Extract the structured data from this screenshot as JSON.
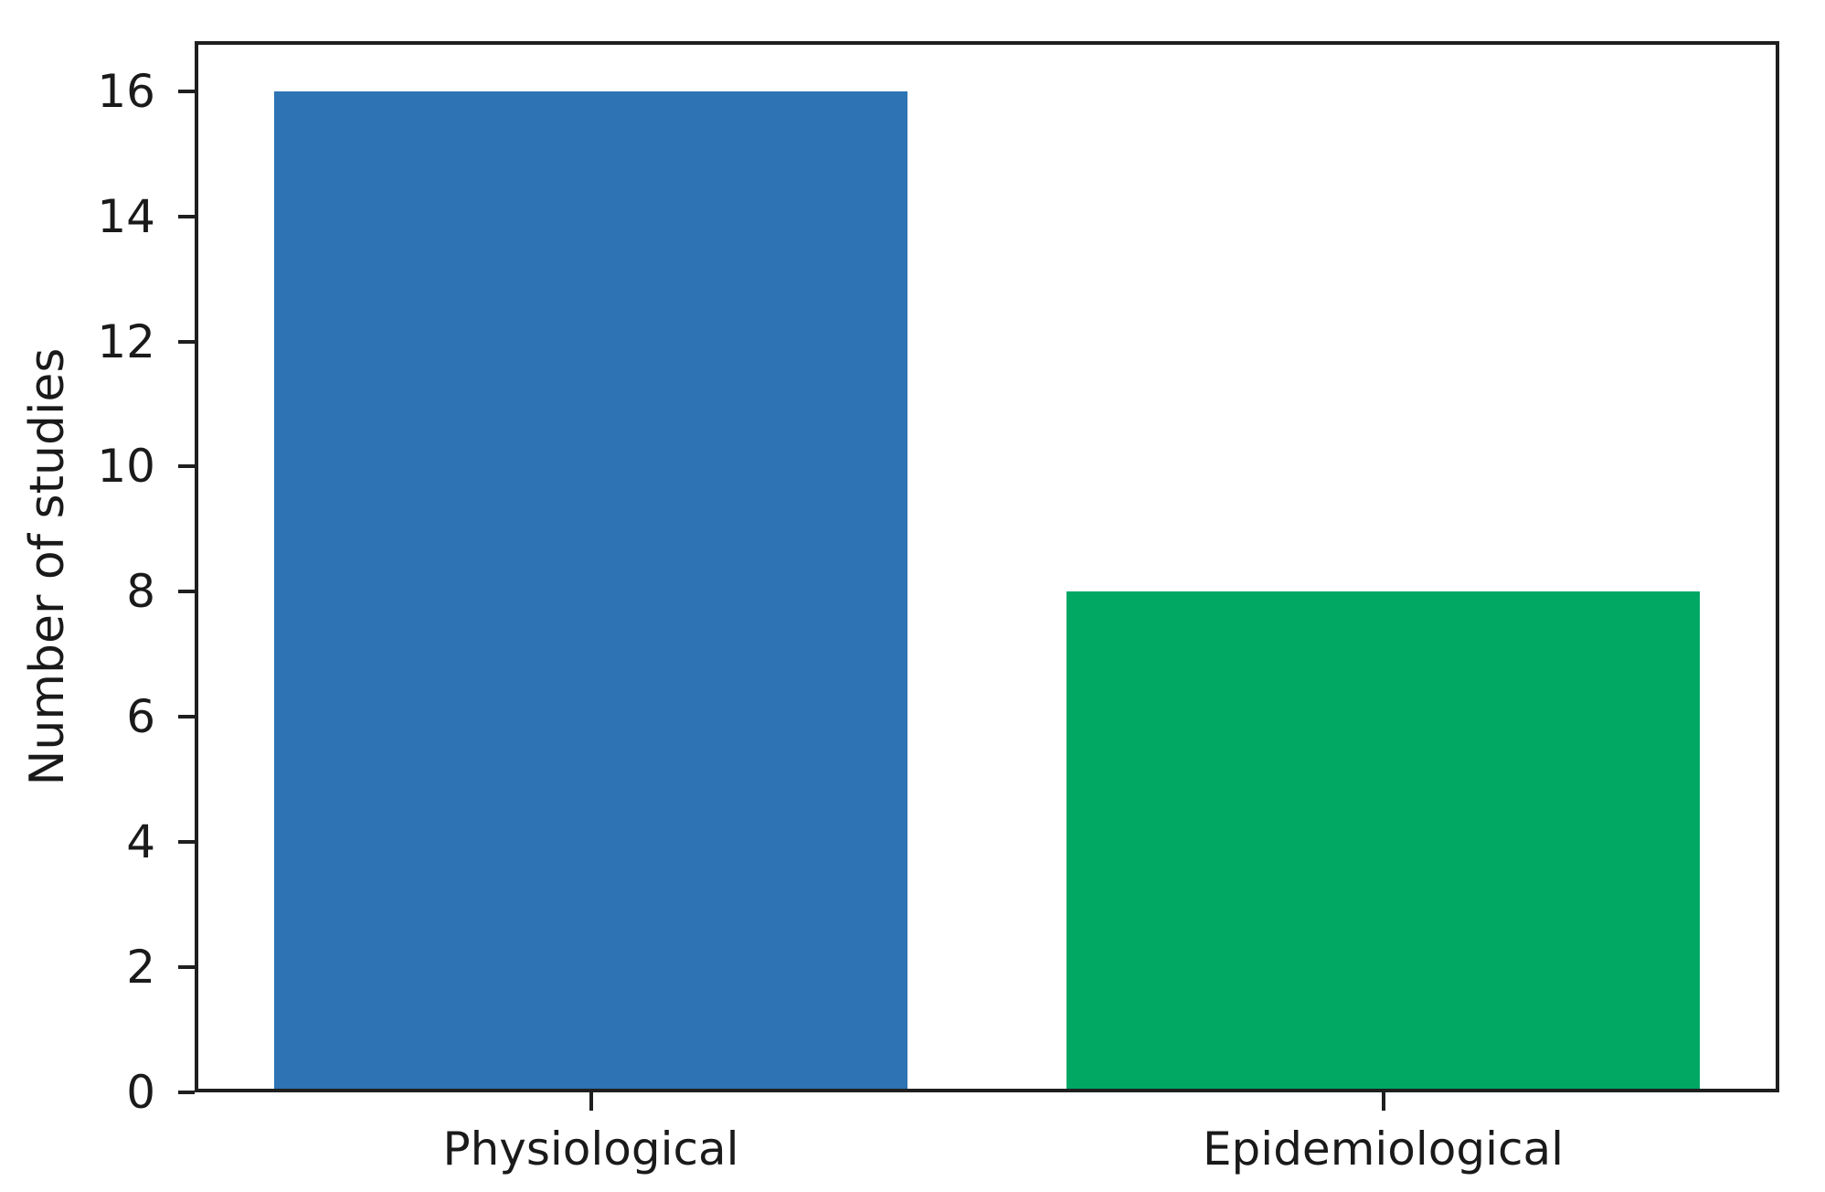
{
  "chart_data": {
    "type": "bar",
    "categories": [
      "Physiological",
      "Epidemiological"
    ],
    "values": [
      16,
      8
    ],
    "bar_colors": [
      "#2e73b4",
      "#00a864"
    ],
    "bar_width_fraction": 0.8,
    "title": "",
    "xlabel": "",
    "ylabel": "Number of studies",
    "ylim": [
      0,
      16.8
    ],
    "yticks": [
      0,
      2,
      4,
      6,
      8,
      10,
      12,
      14,
      16
    ],
    "grid": false,
    "legend": "none",
    "background_color": "#ffffff",
    "axis_color": "#1f1f1f",
    "text_color": "#1a1a1a"
  }
}
